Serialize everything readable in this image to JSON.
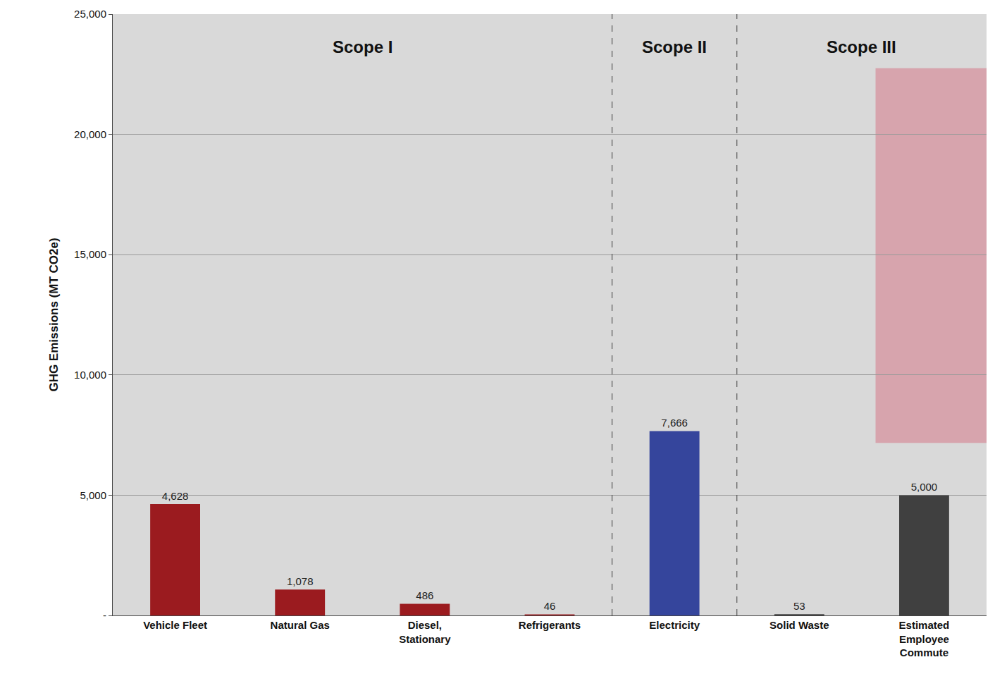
{
  "chart_data": {
    "type": "bar",
    "y_label": "GHG Emissions (MT CO2e)",
    "categories": [
      "Vehicle Fleet",
      "Natural Gas",
      "Diesel, Stationary",
      "Refrigerants",
      "Electricity",
      "Solid Waste",
      "Estimated Employee Commute"
    ],
    "values": [
      4628,
      1078,
      486,
      46,
      7666,
      53,
      5000
    ],
    "value_labels": [
      "4,628",
      "1,078",
      "486",
      "46",
      "7,666",
      "53",
      "5,000"
    ],
    "colors": [
      "#9b1b1f",
      "#9b1b1f",
      "#9b1b1f",
      "#9b1b1f",
      "#35459c",
      "#404040",
      "#404040"
    ],
    "scopes": [
      {
        "label": "Scope I",
        "categories": [
          "Vehicle Fleet",
          "Natural Gas",
          "Diesel, Stationary",
          "Refrigerants"
        ]
      },
      {
        "label": "Scope II",
        "categories": [
          "Electricity"
        ]
      },
      {
        "label": "Scope III",
        "categories": [
          "Solid Waste",
          "Estimated Employee Commute"
        ]
      }
    ],
    "ylim": [
      0,
      25000
    ],
    "yticks": [
      {
        "value": 0,
        "label": "-"
      },
      {
        "value": 5000,
        "label": "5,000"
      },
      {
        "value": 10000,
        "label": "10,000"
      },
      {
        "value": 15000,
        "label": "15,000"
      },
      {
        "value": 20000,
        "label": "20,000"
      },
      {
        "value": 25000,
        "label": "25,000"
      }
    ],
    "grid": true,
    "data_labels": true
  }
}
